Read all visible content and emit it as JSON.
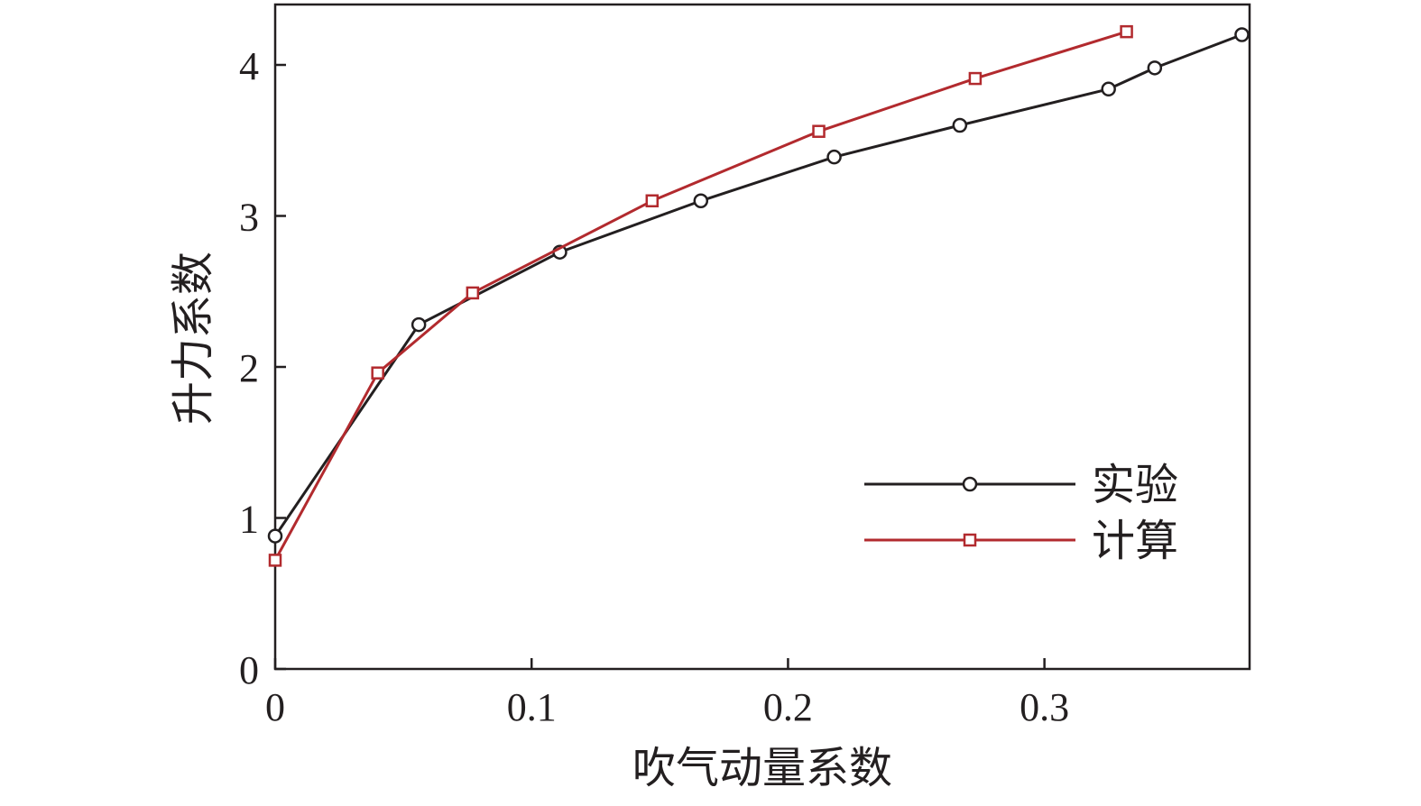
{
  "chart_data": {
    "type": "line",
    "xlabel": "吹气动量系数",
    "ylabel": "升力系数",
    "xlim": [
      0,
      0.38
    ],
    "ylim": [
      0,
      4.4
    ],
    "x_ticks": [
      0,
      0.1,
      0.2,
      0.3
    ],
    "x_tick_labels": [
      "0",
      "0.1",
      "0.2",
      "0.3"
    ],
    "y_ticks": [
      0,
      1,
      2,
      3,
      4
    ],
    "y_tick_labels": [
      "0",
      "1",
      "2",
      "3",
      "4"
    ],
    "grid": false,
    "legend_position": "bottom-right",
    "series": [
      {
        "name": "实验",
        "color": "#231f20",
        "marker": "circle",
        "points": [
          [
            0.0,
            0.88
          ],
          [
            0.056,
            2.28
          ],
          [
            0.111,
            2.76
          ],
          [
            0.166,
            3.1
          ],
          [
            0.218,
            3.39
          ],
          [
            0.267,
            3.6
          ],
          [
            0.325,
            3.84
          ],
          [
            0.343,
            3.98
          ],
          [
            0.377,
            4.2
          ]
        ]
      },
      {
        "name": "计算",
        "color": "#b22a2e",
        "marker": "square",
        "points": [
          [
            0.0,
            0.72
          ],
          [
            0.04,
            1.96
          ],
          [
            0.077,
            2.49
          ],
          [
            0.147,
            3.1
          ],
          [
            0.212,
            3.56
          ],
          [
            0.273,
            3.91
          ],
          [
            0.332,
            4.22
          ]
        ]
      }
    ]
  }
}
